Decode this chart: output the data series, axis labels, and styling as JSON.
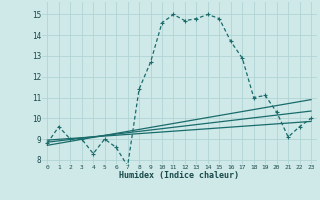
{
  "xlabel": "Humidex (Indice chaleur)",
  "background_color": "#cfe8e8",
  "grid_color": "#b0d4d4",
  "line_color": "#1a6b6b",
  "xlim": [
    -0.5,
    23.5
  ],
  "ylim": [
    7.8,
    15.6
  ],
  "xticks": [
    0,
    1,
    2,
    3,
    4,
    5,
    6,
    7,
    8,
    9,
    10,
    11,
    12,
    13,
    14,
    15,
    16,
    17,
    18,
    19,
    20,
    21,
    22,
    23
  ],
  "yticks": [
    8,
    9,
    10,
    11,
    12,
    13,
    14,
    15
  ],
  "curve1_x": [
    0,
    1,
    2,
    3,
    4,
    5,
    6,
    7,
    8,
    9,
    10,
    11,
    12,
    13,
    14,
    15,
    16,
    17,
    18,
    19,
    20,
    21,
    22,
    23
  ],
  "curve1_y": [
    8.8,
    9.6,
    9.0,
    9.0,
    8.3,
    9.0,
    8.6,
    7.7,
    11.4,
    12.7,
    14.6,
    15.0,
    14.7,
    14.8,
    15.0,
    14.8,
    13.7,
    12.9,
    11.0,
    11.1,
    10.3,
    9.1,
    9.6,
    10.0
  ],
  "line1_x": [
    0,
    23
  ],
  "line1_y": [
    8.7,
    10.9
  ],
  "line2_x": [
    0,
    23
  ],
  "line2_y": [
    8.85,
    10.35
  ],
  "line3_x": [
    0,
    23
  ],
  "line3_y": [
    8.95,
    9.85
  ]
}
